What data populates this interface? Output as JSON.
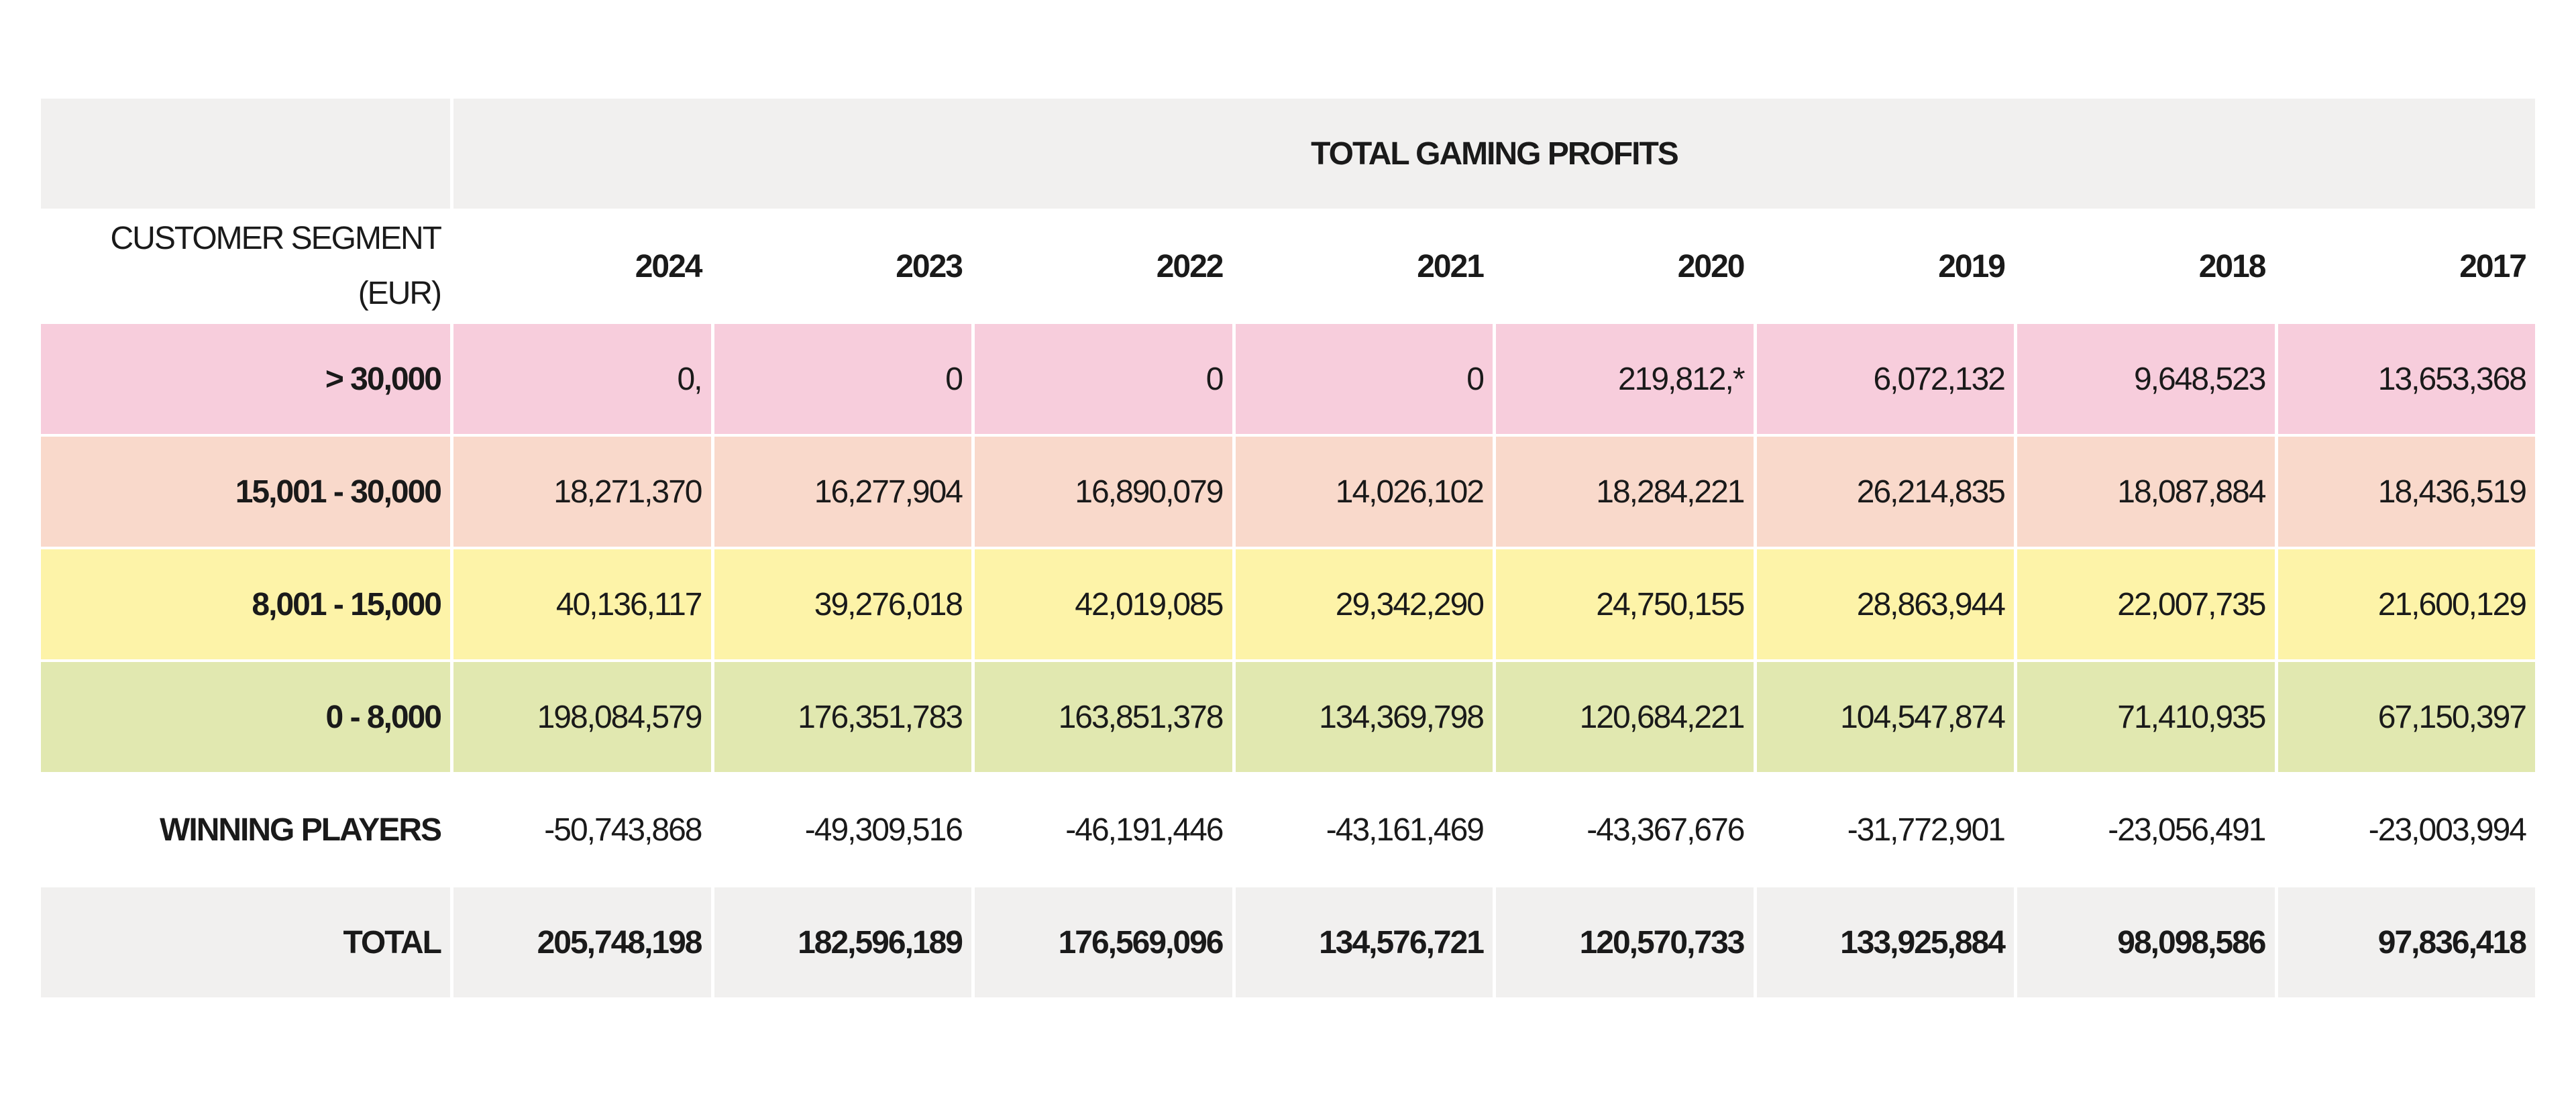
{
  "table": {
    "title": "TOTAL GAMING PROFITS",
    "segment_header": [
      "CUSTOMER SEGMENT",
      "(EUR)"
    ],
    "years": [
      "2024",
      "2023",
      "2022",
      "2021",
      "2020",
      "2019",
      "2018",
      "2017"
    ],
    "rows": [
      {
        "label": "> 30,000",
        "values": [
          "0,",
          "0",
          "0",
          "0",
          "219,812,*",
          "6,072,132",
          "9,648,523",
          "13,653,368"
        ]
      },
      {
        "label": "15,001 - 30,000",
        "values": [
          "18,271,370",
          "16,277,904",
          "16,890,079",
          "14,026,102",
          "18,284,221",
          "26,214,835",
          "18,087,884",
          "18,436,519"
        ]
      },
      {
        "label": "8,001 - 15,000",
        "values": [
          "40,136,117",
          "39,276,018",
          "42,019,085",
          "29,342,290",
          "24,750,155",
          "28,863,944",
          "22,007,735",
          "21,600,129"
        ]
      },
      {
        "label": "0 - 8,000",
        "values": [
          "198,084,579",
          "176,351,783",
          "163,851,378",
          "134,369,798",
          "120,684,221",
          "104,547,874",
          "71,410,935",
          "67,150,397"
        ]
      },
      {
        "label": "WINNING PLAYERS",
        "values": [
          "-50,743,868",
          "-49,309,516",
          "-46,191,446",
          "-43,161,469",
          "-43,367,676",
          "-31,772,901",
          "-23,056,491",
          "-23,003,994"
        ]
      },
      {
        "label": "TOTAL",
        "values": [
          "205,748,198",
          "182,596,189",
          "176,569,096",
          "134,576,721",
          "120,570,733",
          "133,925,884",
          "98,098,586",
          "97,836,418"
        ]
      }
    ]
  }
}
